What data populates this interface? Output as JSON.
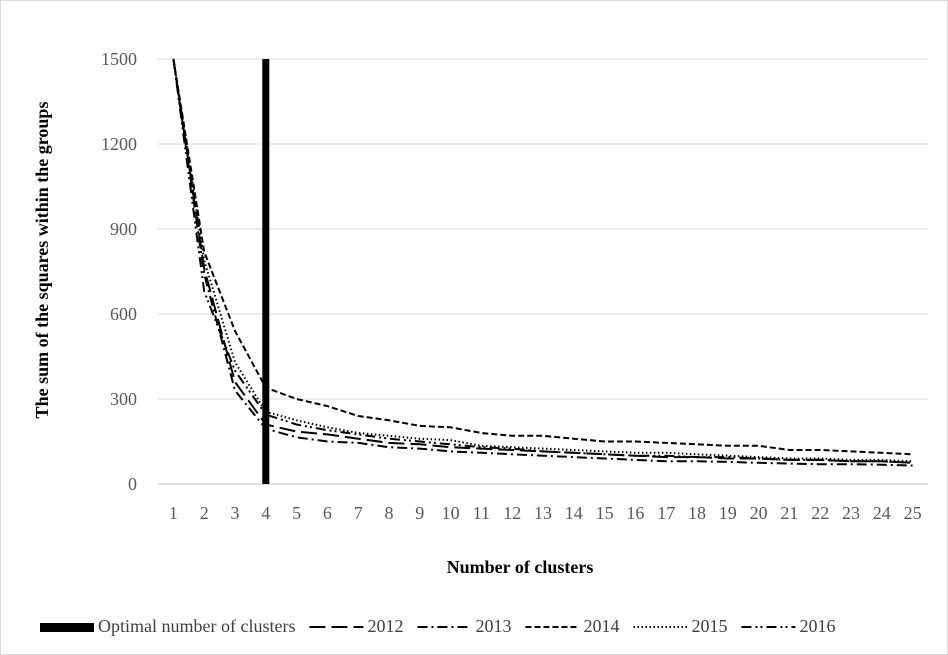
{
  "chart_data": {
    "type": "line",
    "title": "",
    "xlabel": "Number of clusters",
    "ylabel": "The sum of the squares within  the groups",
    "categories": [
      "1",
      "2",
      "3",
      "4",
      "5",
      "6",
      "7",
      "8",
      "9",
      "10",
      "11",
      "12",
      "13",
      "14",
      "15",
      "16",
      "17",
      "18",
      "19",
      "20",
      "21",
      "22",
      "23",
      "24",
      "25"
    ],
    "yticks": [
      "0",
      "300",
      "600",
      "900",
      "1200",
      "1500"
    ],
    "ylim": [
      0,
      1500
    ],
    "grid": true,
    "legend_position": "bottom",
    "optimal_marker": {
      "label": "Optimal number of clusters",
      "x": 4,
      "color": "#000000"
    },
    "series": [
      {
        "name": "2012",
        "dash": "long-dash",
        "values": [
          1500,
          760,
          360,
          210,
          185,
          175,
          160,
          145,
          140,
          130,
          125,
          120,
          115,
          110,
          105,
          100,
          95,
          95,
          90,
          90,
          85,
          85,
          80,
          80,
          75
        ]
      },
      {
        "name": "2013",
        "dash": "dash-dot",
        "values": [
          1500,
          740,
          330,
          195,
          165,
          150,
          145,
          130,
          125,
          115,
          110,
          105,
          100,
          95,
          90,
          85,
          80,
          80,
          78,
          75,
          72,
          70,
          70,
          68,
          65
        ]
      },
      {
        "name": "2014",
        "dash": "short-dash",
        "values": [
          1500,
          820,
          540,
          340,
          300,
          275,
          240,
          225,
          205,
          200,
          180,
          170,
          170,
          160,
          150,
          150,
          145,
          140,
          135,
          135,
          120,
          120,
          115,
          110,
          105
        ]
      },
      {
        "name": "2015",
        "dash": "dotted",
        "values": [
          1500,
          790,
          430,
          255,
          225,
          200,
          180,
          170,
          160,
          155,
          135,
          130,
          125,
          120,
          115,
          110,
          110,
          105,
          100,
          95,
          90,
          90,
          85,
          85,
          80
        ]
      },
      {
        "name": "2016",
        "dash": "dash-dot-dot",
        "values": [
          1500,
          680,
          400,
          245,
          210,
          190,
          175,
          160,
          150,
          140,
          130,
          125,
          115,
          110,
          105,
          100,
          100,
          95,
          95,
          90,
          85,
          85,
          80,
          80,
          75
        ]
      }
    ]
  }
}
